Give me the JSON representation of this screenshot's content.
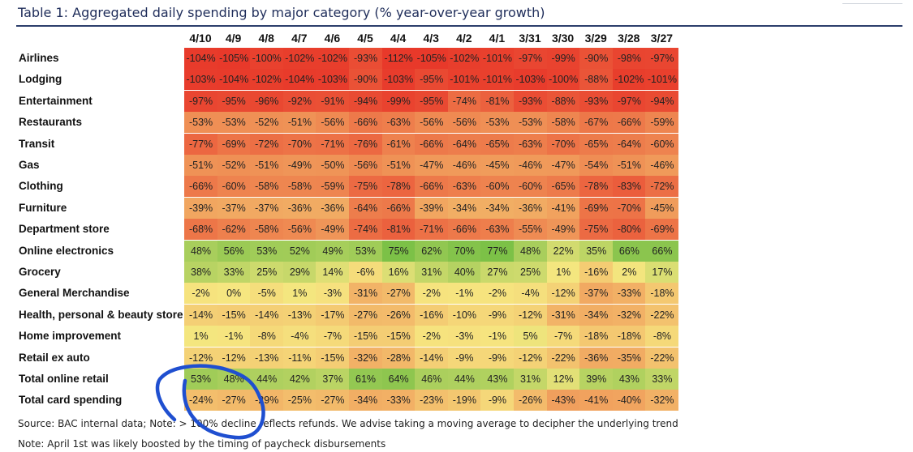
{
  "title": "Table 1: Aggregated daily spending by major category (% year-over-year growth)",
  "chart_data": {
    "type": "heatmap",
    "title": "Table 1: Aggregated daily spending by major category (% year-over-year growth)",
    "columns": [
      "4/10",
      "4/9",
      "4/8",
      "4/7",
      "4/6",
      "4/5",
      "4/4",
      "4/3",
      "4/2",
      "4/1",
      "3/31",
      "3/30",
      "3/29",
      "3/28",
      "3/27"
    ],
    "rows": [
      {
        "label": "Airlines",
        "values": [
          -104,
          -105,
          -100,
          -102,
          -102,
          -93,
          -112,
          -105,
          -102,
          -101,
          -97,
          -99,
          -90,
          -98,
          -97
        ]
      },
      {
        "label": "Lodging",
        "values": [
          -103,
          -104,
          -102,
          -104,
          -103,
          -90,
          -103,
          -95,
          -101,
          -101,
          -103,
          -100,
          -88,
          -102,
          -101
        ]
      },
      {
        "label": "Entertainment",
        "values": [
          -97,
          -95,
          -96,
          -92,
          -91,
          -94,
          -99,
          -95,
          -74,
          -81,
          -93,
          -88,
          -93,
          -97,
          -94
        ]
      },
      {
        "label": "Restaurants",
        "values": [
          -53,
          -53,
          -52,
          -51,
          -56,
          -66,
          -63,
          -56,
          -56,
          -53,
          -53,
          -58,
          -67,
          -66,
          -59
        ]
      },
      {
        "label": "Transit",
        "values": [
          -77,
          -69,
          -72,
          -70,
          -71,
          -76,
          -61,
          -66,
          -64,
          -65,
          -63,
          -70,
          -65,
          -64,
          -60
        ]
      },
      {
        "label": "Gas",
        "values": [
          -51,
          -52,
          -51,
          -49,
          -50,
          -56,
          -51,
          -47,
          -46,
          -45,
          -46,
          -47,
          -54,
          -51,
          -46
        ]
      },
      {
        "label": "Clothing",
        "values": [
          -66,
          -60,
          -58,
          -58,
          -59,
          -75,
          -78,
          -66,
          -63,
          -60,
          -60,
          -65,
          -78,
          -83,
          -72
        ]
      },
      {
        "label": "Furniture",
        "values": [
          -39,
          -37,
          -37,
          -36,
          -36,
          -64,
          -66,
          -39,
          -34,
          -34,
          -36,
          -41,
          -69,
          -70,
          -45
        ]
      },
      {
        "label": "Department store",
        "values": [
          -68,
          -62,
          -58,
          -56,
          -49,
          -74,
          -81,
          -71,
          -66,
          -63,
          -55,
          -49,
          -75,
          -80,
          -69
        ]
      },
      {
        "label": "Online electronics",
        "values": [
          48,
          56,
          53,
          52,
          49,
          53,
          75,
          62,
          70,
          77,
          48,
          22,
          35,
          66,
          66
        ]
      },
      {
        "label": "Grocery",
        "values": [
          38,
          33,
          25,
          29,
          14,
          -6,
          16,
          31,
          40,
          27,
          25,
          1,
          -16,
          2,
          17
        ]
      },
      {
        "label": "General Merchandise",
        "values": [
          -2,
          0,
          -5,
          1,
          -3,
          -31,
          -27,
          -2,
          -1,
          -2,
          -4,
          -12,
          -37,
          -33,
          -18
        ]
      },
      {
        "label": "Health, personal & beauty store",
        "values": [
          -14,
          -15,
          -14,
          -13,
          -17,
          -27,
          -26,
          -16,
          -10,
          -9,
          -12,
          -31,
          -34,
          -32,
          -22
        ]
      },
      {
        "label": "Home improvement",
        "values": [
          1,
          -1,
          -8,
          -4,
          -7,
          -15,
          -15,
          -2,
          -3,
          -1,
          5,
          -7,
          -18,
          -18,
          -8
        ]
      },
      {
        "label": "Retail ex auto",
        "values": [
          -12,
          -12,
          -13,
          -11,
          -15,
          -32,
          -28,
          -14,
          -9,
          -9,
          -12,
          -22,
          -36,
          -35,
          -22
        ]
      },
      {
        "label": "Total online retail",
        "values": [
          53,
          48,
          44,
          42,
          37,
          61,
          64,
          46,
          44,
          43,
          31,
          12,
          39,
          43,
          33
        ]
      },
      {
        "label": "Total card spending",
        "values": [
          -24,
          -27,
          -29,
          -25,
          -27,
          -34,
          -33,
          -23,
          -19,
          -9,
          -26,
          -43,
          -41,
          -40,
          -32
        ]
      }
    ],
    "unit": "%",
    "colorscale": {
      "low": "#e8392a",
      "mid": "#f6e680",
      "high": "#7cc147"
    }
  },
  "footnotes": {
    "source": "Source: BAC internal data; Note: > 100% decline reflects refunds. We advise taking a moving average to decipher the underlying trend",
    "note": "Note: April 1st was likely boosted by the timing of paycheck disbursements"
  },
  "annotation": {
    "color": "#1f4fd0"
  }
}
